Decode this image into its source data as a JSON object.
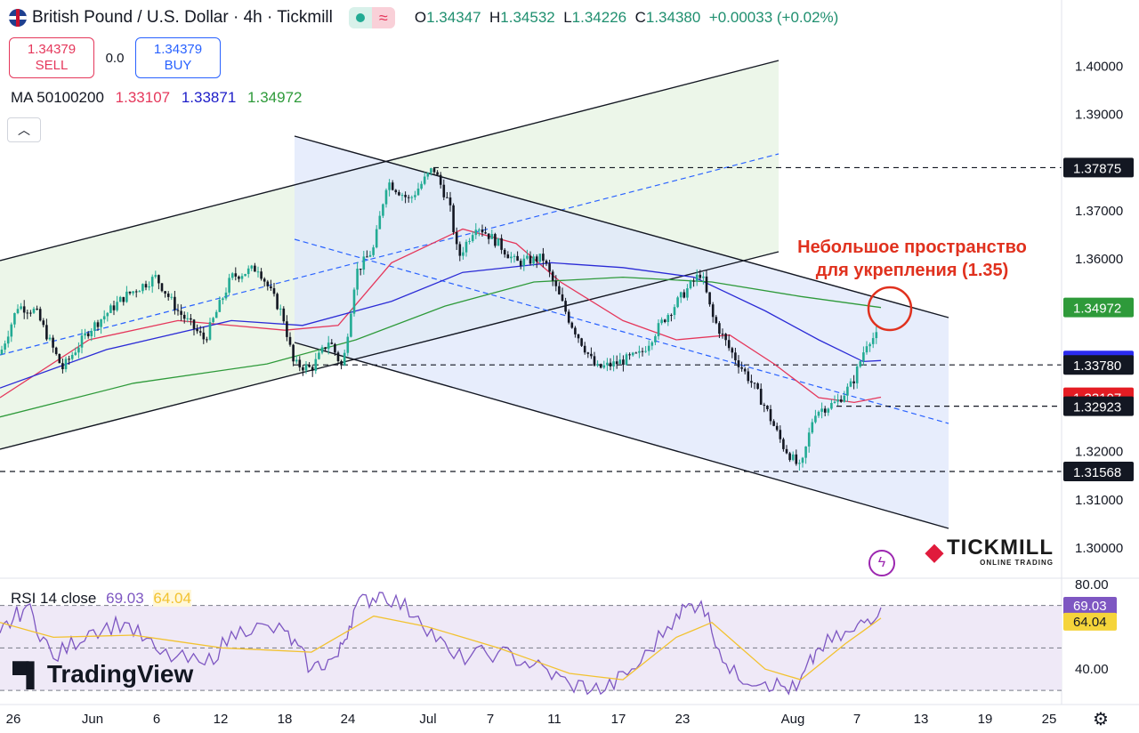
{
  "header": {
    "title": "British Pound / U.S. Dollar · 4h · Tickmill",
    "open_label": "O",
    "open": "1.34347",
    "high_label": "H",
    "high": "1.34532",
    "low_label": "L",
    "low": "1.34226",
    "close_label": "C",
    "close": "1.34380",
    "change": "+0.00033 (+0.02%)",
    "status_icon": "market-open-dot",
    "delay_icon": "approx-icon"
  },
  "trade": {
    "sell_price": "1.34379",
    "sell_label": "SELL",
    "spread": "0.0",
    "buy_price": "1.34379",
    "buy_label": "BUY"
  },
  "indicators": {
    "ma_label": "MA 50100200",
    "ma50": "1.33107",
    "ma100": "1.33871",
    "ma200": "1.34972",
    "rsi_label": "RSI 14 close",
    "rsi": "69.03",
    "rsi_ma": "64.04"
  },
  "annotation": {
    "line1": "Небольшое пространство",
    "line2": "для укрепления (1.35)"
  },
  "branding": {
    "tradingview": "TradingView",
    "tickmill": "TICKMILL",
    "tickmill_sub": "ONLINE TRADING"
  },
  "colors": {
    "up": "#22ab94",
    "down": "#131722",
    "ma50": "#e5375b",
    "ma100": "#2b2bd6",
    "ma200": "#2e9a3a",
    "rsi": "#7e57c2",
    "rsi_ma": "#f2c230",
    "annotation": "#e0311e"
  },
  "chart_data": [
    {
      "type": "candlestick",
      "symbol": "GBPUSD",
      "timeframe": "4h",
      "ylim": [
        1.295,
        1.408
      ],
      "y_ticks": [
        "1.40000",
        "1.39000",
        "1.37000",
        "1.36000",
        "1.32000",
        "1.31000",
        "1.30000"
      ],
      "x_ticks": [
        "26",
        "Jun",
        "6",
        "12",
        "18",
        "24",
        "Jul",
        "7",
        "11",
        "17",
        "23",
        "Aug",
        "7",
        "13",
        "19",
        "25"
      ],
      "price_tags": [
        {
          "label": "1.37875",
          "value": 1.37875,
          "style": "black"
        },
        {
          "label": "1.34972",
          "value": 1.34972,
          "style": "ma200"
        },
        {
          "label": "1.33871",
          "value": 1.33871,
          "style": "ma100"
        },
        {
          "label": "1.33780",
          "value": 1.3378,
          "style": "black"
        },
        {
          "label": "1.33107",
          "value": 1.33107,
          "style": "ma50"
        },
        {
          "label": "1.32923",
          "value": 1.32923,
          "style": "black"
        },
        {
          "label": "1.31568",
          "value": 1.31568,
          "style": "black"
        }
      ],
      "horizontal_levels": [
        1.37875,
        1.3378,
        1.32923,
        1.31568
      ],
      "price_path": [
        [
          0,
          1.34
        ],
        [
          20,
          1.35
        ],
        [
          40,
          1.349
        ],
        [
          70,
          1.337
        ],
        [
          100,
          1.345
        ],
        [
          140,
          1.352
        ],
        [
          175,
          1.356
        ],
        [
          200,
          1.349
        ],
        [
          230,
          1.343
        ],
        [
          260,
          1.356
        ],
        [
          290,
          1.358
        ],
        [
          318,
          1.348
        ],
        [
          330,
          1.338
        ],
        [
          350,
          1.337
        ],
        [
          370,
          1.343
        ],
        [
          385,
          1.337
        ],
        [
          400,
          1.357
        ],
        [
          420,
          1.362
        ],
        [
          435,
          1.376
        ],
        [
          460,
          1.372
        ],
        [
          487,
          1.3787
        ],
        [
          505,
          1.371
        ],
        [
          515,
          1.36
        ],
        [
          535,
          1.367
        ],
        [
          560,
          1.363
        ],
        [
          580,
          1.359
        ],
        [
          610,
          1.36
        ],
        [
          640,
          1.347
        ],
        [
          670,
          1.337
        ],
        [
          690,
          1.338
        ],
        [
          720,
          1.34
        ],
        [
          745,
          1.347
        ],
        [
          770,
          1.353
        ],
        [
          788,
          1.357
        ],
        [
          800,
          1.348
        ],
        [
          820,
          1.341
        ],
        [
          845,
          1.334
        ],
        [
          860,
          1.329
        ],
        [
          880,
          1.321
        ],
        [
          900,
          1.316
        ],
        [
          915,
          1.328
        ],
        [
          940,
          1.33
        ],
        [
          958,
          1.334
        ],
        [
          975,
          1.343
        ],
        [
          990,
          1.344
        ]
      ],
      "moving_averages": [
        {
          "name": "MA 50",
          "last": 1.33107,
          "path": [
            [
              0,
              1.331
            ],
            [
              100,
              1.343
            ],
            [
              200,
              1.347
            ],
            [
              320,
              1.345
            ],
            [
              380,
              1.346
            ],
            [
              440,
              1.359
            ],
            [
              520,
              1.366
            ],
            [
              580,
              1.363
            ],
            [
              630,
              1.355
            ],
            [
              700,
              1.347
            ],
            [
              760,
              1.343
            ],
            [
              820,
              1.344
            ],
            [
              870,
              1.338
            ],
            [
              920,
              1.331
            ],
            [
              960,
              1.33
            ],
            [
              990,
              1.3311
            ]
          ]
        },
        {
          "name": "MA 100",
          "last": 1.33871,
          "path": [
            [
              0,
              1.333
            ],
            [
              120,
              1.341
            ],
            [
              260,
              1.347
            ],
            [
              340,
              1.346
            ],
            [
              440,
              1.351
            ],
            [
              520,
              1.357
            ],
            [
              620,
              1.359
            ],
            [
              700,
              1.358
            ],
            [
              780,
              1.356
            ],
            [
              860,
              1.349
            ],
            [
              920,
              1.343
            ],
            [
              970,
              1.3385
            ],
            [
              990,
              1.3387
            ]
          ]
        },
        {
          "name": "MA 200",
          "last": 1.34972,
          "path": [
            [
              0,
              1.327
            ],
            [
              150,
              1.334
            ],
            [
              300,
              1.338
            ],
            [
              400,
              1.343
            ],
            [
              500,
              1.35
            ],
            [
              600,
              1.355
            ],
            [
              700,
              1.356
            ],
            [
              800,
              1.355
            ],
            [
              900,
              1.352
            ],
            [
              990,
              1.3497
            ]
          ]
        }
      ]
    },
    {
      "type": "line",
      "title": "RSI 14 close",
      "ylim": [
        25,
        82
      ],
      "y_ticks": [
        "80.00",
        "40.00"
      ],
      "levels": [
        70,
        50,
        30
      ],
      "series": [
        {
          "name": "RSI",
          "last": 69.03,
          "path": [
            [
              0,
              57
            ],
            [
              30,
              70
            ],
            [
              60,
              45
            ],
            [
              100,
              58
            ],
            [
              140,
              62
            ],
            [
              180,
              47
            ],
            [
              230,
              42
            ],
            [
              270,
              60
            ],
            [
              320,
              58
            ],
            [
              350,
              40
            ],
            [
              380,
              46
            ],
            [
              400,
              70
            ],
            [
              430,
              76
            ],
            [
              470,
              65
            ],
            [
              510,
              45
            ],
            [
              560,
              48
            ],
            [
              600,
              42
            ],
            [
              640,
              33
            ],
            [
              680,
              30
            ],
            [
              720,
              43
            ],
            [
              760,
              66
            ],
            [
              788,
              72
            ],
            [
              820,
              38
            ],
            [
              860,
              34
            ],
            [
              895,
              30
            ],
            [
              920,
              50
            ],
            [
              960,
              58
            ],
            [
              990,
              69
            ]
          ]
        },
        {
          "name": "RSI MA",
          "last": 64.04,
          "path": [
            [
              0,
              62
            ],
            [
              60,
              55
            ],
            [
              150,
              56
            ],
            [
              250,
              50
            ],
            [
              350,
              48
            ],
            [
              420,
              65
            ],
            [
              480,
              60
            ],
            [
              560,
              50
            ],
            [
              640,
              38
            ],
            [
              700,
              35
            ],
            [
              760,
              55
            ],
            [
              800,
              62
            ],
            [
              860,
              40
            ],
            [
              900,
              35
            ],
            [
              950,
              52
            ],
            [
              990,
              64
            ]
          ]
        }
      ]
    }
  ]
}
